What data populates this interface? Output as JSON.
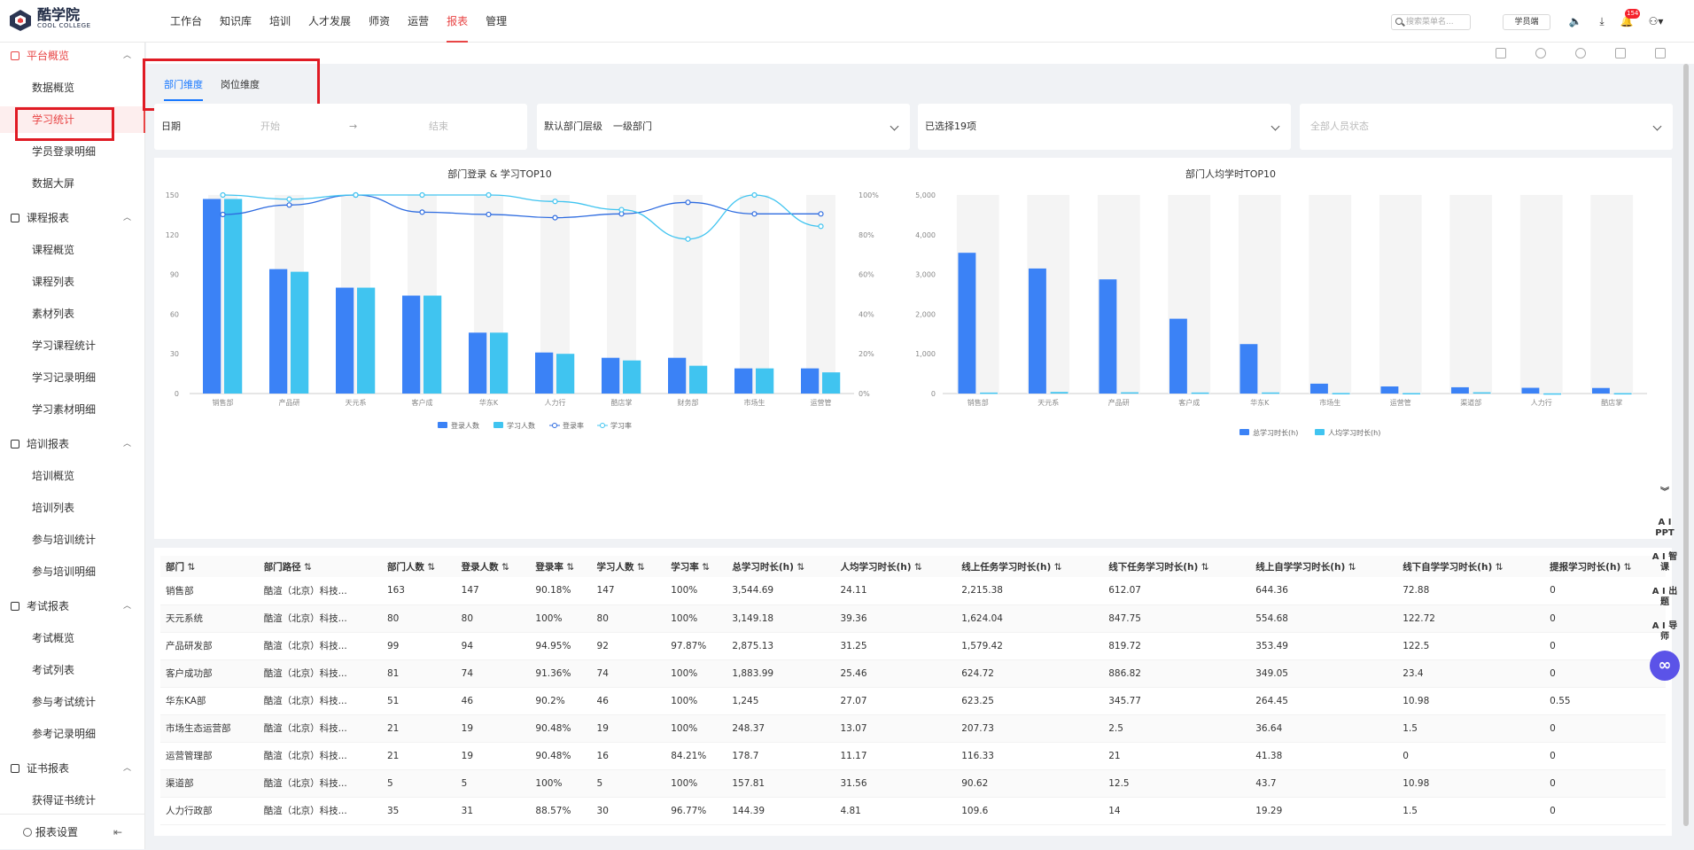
{
  "app": {
    "name_cn": "酷学院",
    "name_en": "COOL COLLEGE"
  },
  "nav": [
    "工作台",
    "知识库",
    "培训",
    "人才发展",
    "师资",
    "运营",
    "报表",
    "管理"
  ],
  "nav_active": 6,
  "header": {
    "search_placeholder": "搜索菜单名...",
    "student_button": "学员端",
    "notification_count": "154"
  },
  "sidebar": {
    "groups": [
      {
        "label": "平台概览",
        "items": [
          "数据概览",
          "学习统计",
          "学员登录明细",
          "数据大屏"
        ]
      },
      {
        "label": "课程报表",
        "items": [
          "课程概览",
          "课程列表",
          "素材列表",
          "学习课程统计",
          "学习记录明细",
          "学习素材明细"
        ]
      },
      {
        "label": "培训报表",
        "items": [
          "培训概览",
          "培训列表",
          "参与培训统计",
          "参与培训明细"
        ]
      },
      {
        "label": "考试报表",
        "items": [
          "考试概览",
          "考试列表",
          "参与考试统计",
          "参考记录明细"
        ]
      },
      {
        "label": "证书报表",
        "items": [
          "获得证书统计"
        ]
      }
    ],
    "footer": "报表设置"
  },
  "tabs": [
    "部门维度",
    "岗位维度"
  ],
  "filters": {
    "date_label": "日期",
    "date_start": "开始",
    "date_arrow": "→",
    "date_end": "结束",
    "level_label": "默认部门层级",
    "level_value": "一级部门",
    "selected": "已选择19项",
    "status_placeholder": "全部人员状态"
  },
  "chart_data": [
    {
      "type": "bar",
      "title": "部门登录 & 学习TOP10",
      "categories": [
        "销售部",
        "产品研",
        "天元系",
        "客户成",
        "华东K",
        "人力行",
        "酷店掌",
        "财务部",
        "市场生",
        "运营管"
      ],
      "ylim": [
        0,
        150
      ],
      "y_ticks": [
        "0",
        "30",
        "60",
        "90",
        "120",
        "150"
      ],
      "y2lim": [
        0,
        100
      ],
      "y2_ticks": [
        "0%",
        "20%",
        "40%",
        "60%",
        "80%",
        "100%"
      ],
      "series": [
        {
          "name": "登录人数",
          "type": "bar",
          "color": "#3b82f6",
          "values": [
            147,
            94,
            80,
            74,
            46,
            31,
            27,
            27,
            19,
            19
          ]
        },
        {
          "name": "学习人数",
          "type": "bar",
          "color": "#40c4f0",
          "values": [
            147,
            92,
            80,
            74,
            46,
            30,
            25,
            21,
            19,
            16
          ]
        },
        {
          "name": "登录率",
          "type": "line",
          "axis": "right",
          "color": "#2d6be0",
          "values": [
            90.18,
            94.95,
            100,
            91.36,
            90.2,
            88.57,
            90.48,
            96.3,
            90.48,
            90.48
          ]
        },
        {
          "name": "学习率",
          "type": "line",
          "axis": "right",
          "color": "#40c4f0",
          "values": [
            100,
            97.87,
            100,
            100,
            100,
            96.77,
            92.6,
            77.8,
            100,
            84.21
          ]
        }
      ]
    },
    {
      "type": "bar",
      "title": "部门人均学时TOP10",
      "categories": [
        "销售部",
        "天元系",
        "产品研",
        "客户成",
        "华东K",
        "市场生",
        "运营管",
        "渠道部",
        "人力行",
        "酷店掌"
      ],
      "ylim": [
        0,
        5000
      ],
      "y_ticks": [
        "0",
        "1,000",
        "2,000",
        "3,000",
        "4,000",
        "5,000"
      ],
      "series": [
        {
          "name": "总学习时长(h)",
          "color": "#3b82f6",
          "values": [
            3544.69,
            3149.18,
            2875.13,
            1883.99,
            1245,
            248.37,
            178.7,
            157.81,
            144.39,
            140
          ]
        },
        {
          "name": "人均学习时长(h)",
          "color": "#40c4f0",
          "values": [
            24.11,
            39.36,
            31.25,
            25.46,
            27.07,
            13.07,
            11.17,
            31.56,
            4.81,
            10
          ]
        }
      ]
    }
  ],
  "table": {
    "headers": [
      "部门",
      "部门路径",
      "部门人数",
      "登录人数",
      "登录率",
      "学习人数",
      "学习率",
      "总学习时长(h)",
      "人均学习时长(h)",
      "线上任务学习时长(h)",
      "线下任务学习时长(h)",
      "线上自学学习时长(h)",
      "线下自学学习时长(h)",
      "提报学习时长(h)"
    ],
    "rows": [
      [
        "销售部",
        "酷渲（北京）科技...",
        "163",
        "147",
        "90.18%",
        "147",
        "100%",
        "3,544.69",
        "24.11",
        "2,215.38",
        "612.07",
        "644.36",
        "72.88",
        "0"
      ],
      [
        "天元系统",
        "酷渲（北京）科技...",
        "80",
        "80",
        "100%",
        "80",
        "100%",
        "3,149.18",
        "39.36",
        "1,624.04",
        "847.75",
        "554.68",
        "122.72",
        "0"
      ],
      [
        "产品研发部",
        "酷渲（北京）科技...",
        "99",
        "94",
        "94.95%",
        "92",
        "97.87%",
        "2,875.13",
        "31.25",
        "1,579.42",
        "819.72",
        "353.49",
        "122.5",
        "0"
      ],
      [
        "客户成功部",
        "酷渲（北京）科技...",
        "81",
        "74",
        "91.36%",
        "74",
        "100%",
        "1,883.99",
        "25.46",
        "624.72",
        "886.82",
        "349.05",
        "23.4",
        "0"
      ],
      [
        "华东KA部",
        "酷渲（北京）科技...",
        "51",
        "46",
        "90.2%",
        "46",
        "100%",
        "1,245",
        "27.07",
        "623.25",
        "345.77",
        "264.45",
        "10.98",
        "0.55"
      ],
      [
        "市场生态运营部",
        "酷渲（北京）科技...",
        "21",
        "19",
        "90.48%",
        "19",
        "100%",
        "248.37",
        "13.07",
        "207.73",
        "2.5",
        "36.64",
        "1.5",
        "0"
      ],
      [
        "运营管理部",
        "酷渲（北京）科技...",
        "21",
        "19",
        "90.48%",
        "16",
        "84.21%",
        "178.7",
        "11.17",
        "116.33",
        "21",
        "41.38",
        "0",
        "0"
      ],
      [
        "渠道部",
        "酷渲（北京）科技...",
        "5",
        "5",
        "100%",
        "5",
        "100%",
        "157.81",
        "31.56",
        "90.62",
        "12.5",
        "43.7",
        "10.98",
        "0"
      ],
      [
        "人力行政部",
        "酷渲（北京）科技...",
        "35",
        "31",
        "88.57%",
        "30",
        "96.77%",
        "144.39",
        "4.81",
        "109.6",
        "14",
        "19.29",
        "1.5",
        "0"
      ]
    ]
  },
  "ai_tools": [
    "A I PPT",
    "A I 智课",
    "A I 出题",
    "A I 导师"
  ]
}
